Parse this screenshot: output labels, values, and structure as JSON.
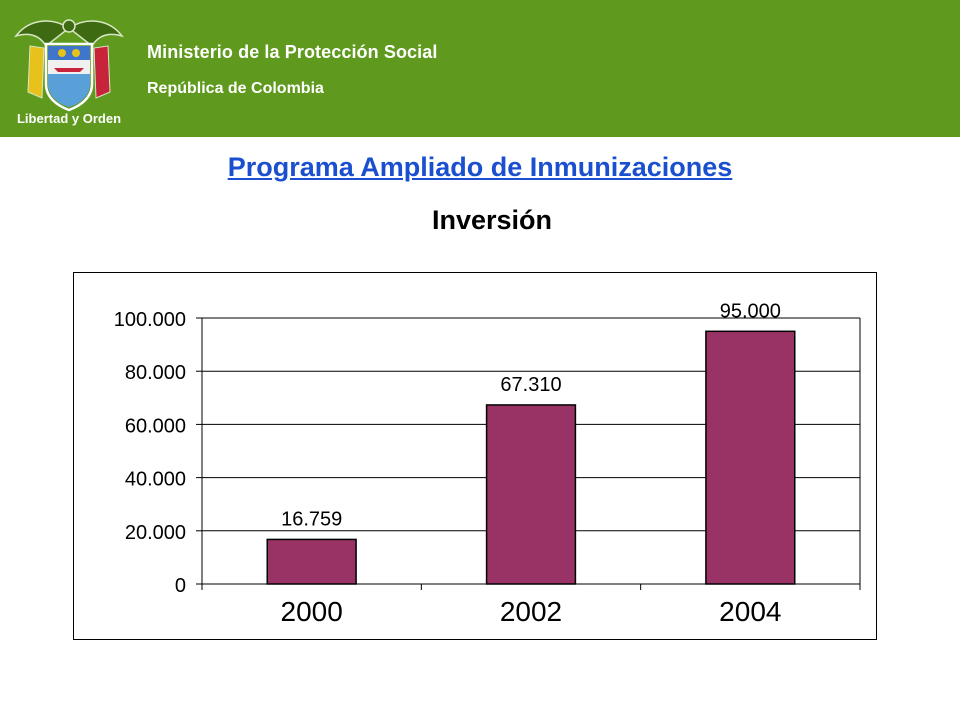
{
  "header": {
    "ministry": "Ministerio de la Protección Social",
    "republic": "República de Colombia",
    "logo_motto": "Libertad y Orden",
    "background_color": "#5f9a1e"
  },
  "title": "Programa Ampliado de Inmunizaciones",
  "subtitle": "Inversión",
  "chart_data": {
    "type": "bar",
    "categories": [
      "2000",
      "2002",
      "2004"
    ],
    "values": [
      16759,
      67310,
      95000
    ],
    "data_labels": [
      "16.759",
      "67.310",
      "95.000"
    ],
    "yticks": [
      "0",
      "20.000",
      "40.000",
      "60.000",
      "80.000",
      "100.000"
    ],
    "ylim": [
      0,
      100000
    ],
    "grid": true,
    "bar_color": "#993366"
  }
}
